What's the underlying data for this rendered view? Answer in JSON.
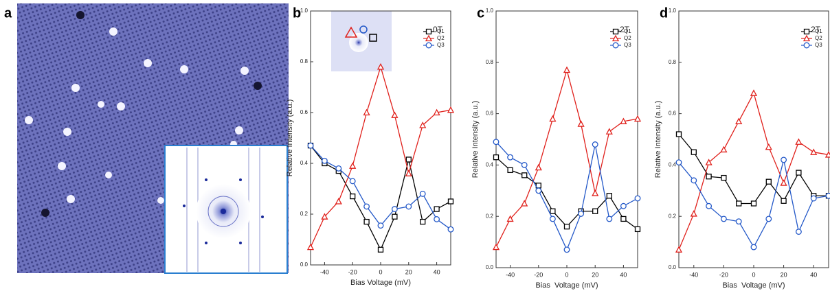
{
  "panel_labels": [
    "a",
    "b",
    "c",
    "d"
  ],
  "chart_data": [
    {
      "type": "line",
      "annotation": "0T",
      "x_label": "Bias Voltage (mV)",
      "y_label": "Relative Intensity (a.u.)",
      "x": [
        -50,
        -40,
        -30,
        -20,
        -10,
        0,
        10,
        20,
        30,
        40,
        50
      ],
      "xlim": [
        -50,
        50
      ],
      "xticks": [
        -40,
        -20,
        0,
        20,
        40
      ],
      "ylim": [
        0,
        1
      ],
      "yticks": [
        {
          "value": 0,
          "label": "0.0"
        },
        0.2,
        0.4,
        0.6,
        0.8,
        {
          "value": 1,
          "label": "1.0"
        }
      ],
      "series": [
        {
          "name": "Q1",
          "color": "#000000",
          "marker": "square",
          "values": [
            0.47,
            0.4,
            0.37,
            0.27,
            0.17,
            0.06,
            0.19,
            0.415,
            0.17,
            0.22,
            0.25
          ]
        },
        {
          "name": "Q2",
          "color": "#e0201b",
          "marker": "triangle",
          "values": [
            0.07,
            0.19,
            0.25,
            0.39,
            0.6,
            0.78,
            0.59,
            0.36,
            0.55,
            0.6,
            0.61
          ]
        },
        {
          "name": "Q3",
          "color": "#2358c8",
          "marker": "circle",
          "values": [
            0.47,
            0.41,
            0.38,
            0.33,
            0.23,
            0.155,
            0.22,
            0.23,
            0.28,
            0.18,
            0.14
          ]
        }
      ]
    },
    {
      "type": "line",
      "annotation": "-2T",
      "x_label": "Bias  Voltage (mV)",
      "y_label": "Relative Intensity (a.u.)",
      "x": [
        -50,
        -40,
        -30,
        -20,
        -10,
        0,
        10,
        20,
        30,
        40,
        50
      ],
      "xlim": [
        -50,
        50
      ],
      "xticks": [
        -40,
        -20,
        0,
        20,
        40
      ],
      "ylim": [
        0,
        1
      ],
      "yticks": [
        {
          "value": 0,
          "label": "0.0"
        },
        0.2,
        0.4,
        0.6,
        0.8,
        {
          "value": 1,
          "label": "1.0"
        }
      ],
      "series": [
        {
          "name": "Q1",
          "color": "#000000",
          "marker": "square",
          "values": [
            0.43,
            0.38,
            0.36,
            0.32,
            0.22,
            0.16,
            0.22,
            0.22,
            0.28,
            0.19,
            0.15
          ]
        },
        {
          "name": "Q2",
          "color": "#e0201b",
          "marker": "triangle",
          "values": [
            0.08,
            0.19,
            0.25,
            0.39,
            0.58,
            0.77,
            0.56,
            0.29,
            0.53,
            0.57,
            0.58
          ]
        },
        {
          "name": "Q3",
          "color": "#2358c8",
          "marker": "circle",
          "values": [
            0.49,
            0.43,
            0.4,
            0.3,
            0.19,
            0.07,
            0.21,
            0.48,
            0.19,
            0.24,
            0.27
          ]
        }
      ]
    },
    {
      "type": "line",
      "annotation": "2T",
      "x_label": "Bias  Voltage (mV)",
      "y_label": "Relative Intensity (a.u.)",
      "x": [
        -50,
        -40,
        -30,
        -20,
        -10,
        0,
        10,
        20,
        30,
        40,
        50
      ],
      "xlim": [
        -50,
        50
      ],
      "xticks": [
        -40,
        -20,
        0,
        20,
        40
      ],
      "ylim": [
        0,
        1
      ],
      "yticks": [
        {
          "value": 0,
          "label": "0.0"
        },
        0.2,
        0.4,
        0.6,
        0.8,
        {
          "value": 1,
          "label": "1.0"
        }
      ],
      "series": [
        {
          "name": "Q1",
          "color": "#000000",
          "marker": "square",
          "values": [
            0.52,
            0.45,
            0.355,
            0.35,
            0.25,
            0.25,
            0.335,
            0.26,
            0.37,
            0.28,
            0.28
          ]
        },
        {
          "name": "Q2",
          "color": "#e0201b",
          "marker": "triangle",
          "values": [
            0.07,
            0.21,
            0.41,
            0.46,
            0.57,
            0.68,
            0.47,
            0.33,
            0.49,
            0.45,
            0.44
          ]
        },
        {
          "name": "Q3",
          "color": "#2358c8",
          "marker": "circle",
          "values": [
            0.41,
            0.34,
            0.24,
            0.19,
            0.18,
            0.08,
            0.19,
            0.42,
            0.14,
            0.27,
            0.28
          ]
        }
      ]
    }
  ]
}
